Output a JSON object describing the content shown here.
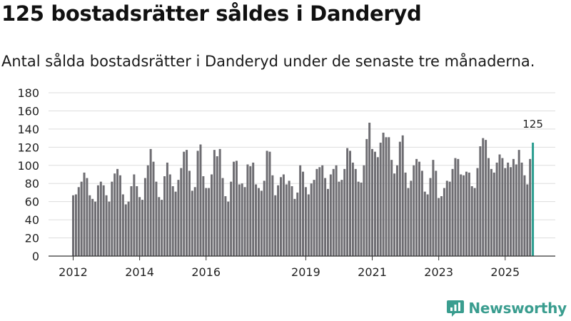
{
  "title": "125 bostadsrätter såldes i Danderyd",
  "subtitle": "Antal sålda bostadsrätter i Danderyd under de senaste tre månaderna.",
  "brand": "Newsworthy",
  "colors": {
    "bar": "#6e6d72",
    "highlight": "#2a9d8f",
    "grid": "#dddddd",
    "brand": "#3a9d8f"
  },
  "chart_data": {
    "type": "bar",
    "x_start": {
      "year": 2012,
      "month": 1
    },
    "values": [
      67,
      68,
      76,
      82,
      92,
      86,
      67,
      63,
      60,
      78,
      82,
      78,
      67,
      60,
      82,
      91,
      96,
      89,
      68,
      57,
      60,
      77,
      90,
      77,
      65,
      62,
      86,
      100,
      118,
      104,
      82,
      65,
      62,
      88,
      103,
      90,
      77,
      71,
      84,
      97,
      115,
      117,
      94,
      72,
      76,
      116,
      123,
      88,
      75,
      75,
      90,
      117,
      110,
      118,
      86,
      66,
      60,
      82,
      104,
      105,
      79,
      80,
      76,
      101,
      99,
      103,
      79,
      75,
      72,
      83,
      116,
      115,
      89,
      67,
      78,
      87,
      90,
      79,
      83,
      77,
      63,
      70,
      100,
      93,
      76,
      68,
      80,
      84,
      96,
      98,
      100,
      86,
      74,
      90,
      96,
      100,
      82,
      84,
      96,
      119,
      116,
      103,
      96,
      82,
      81,
      100,
      129,
      147,
      118,
      115,
      109,
      125,
      136,
      131,
      131,
      106,
      91,
      100,
      126,
      133,
      92,
      75,
      83,
      100,
      107,
      104,
      94,
      71,
      68,
      86,
      106,
      94,
      64,
      66,
      75,
      83,
      82,
      96,
      108,
      107,
      90,
      89,
      93,
      92,
      77,
      75,
      97,
      121,
      130,
      128,
      108,
      96,
      92,
      103,
      112,
      108,
      97,
      103,
      98,
      107,
      101,
      117,
      103,
      89,
      79,
      107,
      125
    ],
    "highlight_index": 166,
    "highlight_label": "125",
    "ylim": [
      0,
      180
    ],
    "yticks": [
      0,
      20,
      40,
      60,
      80,
      100,
      120,
      140,
      160,
      180
    ],
    "xticks": [
      {
        "label": "2012",
        "index": 0
      },
      {
        "label": "2014",
        "index": 24
      },
      {
        "label": "2016",
        "index": 48
      },
      {
        "label": "2019",
        "index": 84
      },
      {
        "label": "2021",
        "index": 108
      },
      {
        "label": "2023",
        "index": 132
      },
      {
        "label": "2025",
        "index": 156
      }
    ],
    "grid": true
  }
}
